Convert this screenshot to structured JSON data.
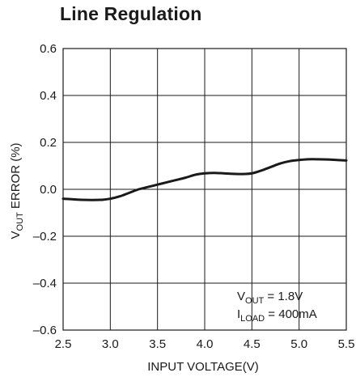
{
  "chart_data": {
    "type": "line",
    "title": "Line Regulation",
    "xlabel": "INPUT VOLTAGE(V)",
    "ylabel": {
      "prefix": "V",
      "sub": "OUT",
      "suffix": " ERROR (%)"
    },
    "xlim": [
      2.5,
      5.5
    ],
    "ylim": [
      -0.6,
      0.6
    ],
    "x_ticks": [
      "2.5",
      "3.0",
      "3.5",
      "4.0",
      "4.5",
      "5.0",
      "5.5"
    ],
    "x_tick_values": [
      2.5,
      3.0,
      3.5,
      4.0,
      4.5,
      5.0,
      5.5
    ],
    "y_ticks": [
      "0.6",
      "0.4",
      "0.2",
      "0.0",
      "–0.2",
      "–0.4",
      "–0.6"
    ],
    "y_tick_values": [
      0.6,
      0.4,
      0.2,
      0.0,
      -0.2,
      -0.4,
      -0.6
    ],
    "grid": true,
    "series": [
      {
        "x": [
          2.5,
          2.7,
          2.9,
          3.0,
          3.1,
          3.2,
          3.3,
          3.4,
          3.5,
          3.6,
          3.7,
          3.8,
          3.9,
          4.0,
          4.1,
          4.2,
          4.3,
          4.4,
          4.5,
          4.6,
          4.7,
          4.8,
          4.9,
          5.0,
          5.1,
          5.2,
          5.3,
          5.4,
          5.5
        ],
        "y": [
          -0.04,
          -0.045,
          -0.045,
          -0.04,
          -0.03,
          -0.015,
          0.0,
          0.01,
          0.02,
          0.03,
          0.04,
          0.05,
          0.062,
          0.068,
          0.07,
          0.068,
          0.066,
          0.065,
          0.068,
          0.08,
          0.095,
          0.11,
          0.12,
          0.125,
          0.128,
          0.128,
          0.127,
          0.125,
          0.123
        ]
      }
    ],
    "annotations": [
      {
        "prefix": "V",
        "sub": "OUT",
        "suffix": " = 1.8V"
      },
      {
        "prefix": "I",
        "sub": "LOAD",
        "suffix": " = 400mA"
      }
    ]
  }
}
